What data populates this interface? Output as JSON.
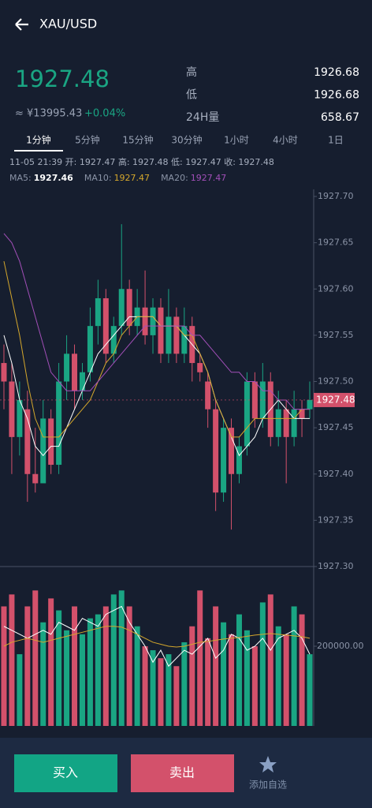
{
  "header": {
    "title": "XAU/USD"
  },
  "ticker": {
    "price": "1927.48",
    "cny": "≈ ¥13995.43",
    "change": "+0.04%",
    "stats": [
      {
        "label": "高",
        "value": "1926.68"
      },
      {
        "label": "低",
        "value": "1926.68"
      },
      {
        "label": "24H量",
        "value": "658.67"
      }
    ]
  },
  "tabs": [
    "1分钟",
    "5分钟",
    "15分钟",
    "30分钟",
    "1小时",
    "4小时",
    "1日"
  ],
  "info": "11-05 21:39 开: 1927.47 高: 1927.48 低: 1927.47 收: 1927.48",
  "chart_data": {
    "type": "candlestick",
    "up_color": "#1aa583",
    "down_color": "#d3516b",
    "ylim": [
      1927.3,
      1927.7
    ],
    "yticks": [
      {
        "value": 1927.7,
        "label": "1927.70"
      },
      {
        "value": 1927.65,
        "label": "1927.65"
      },
      {
        "value": 1927.6,
        "label": "1927.60"
      },
      {
        "value": 1927.55,
        "label": "1927.55"
      },
      {
        "value": 1927.5,
        "label": "1927.50"
      },
      {
        "value": 1927.45,
        "label": "1927.45"
      },
      {
        "value": 1927.4,
        "label": "1927.40"
      },
      {
        "value": 1927.35,
        "label": "1927.35"
      },
      {
        "value": 1927.3,
        "label": "1927.30"
      }
    ],
    "last_price": 1927.48,
    "open": [
      1927.52,
      1927.5,
      1927.44,
      1927.47,
      1927.4,
      1927.39,
      1927.46,
      1927.41,
      1927.5,
      1927.53,
      1927.49,
      1927.51,
      1927.56,
      1927.59,
      1927.53,
      1927.56,
      1927.6,
      1927.56,
      1927.58,
      1927.55,
      1927.58,
      1927.53,
      1927.57,
      1927.53,
      1927.56,
      1927.52,
      1927.5,
      1927.47,
      1927.38,
      1927.45,
      1927.4,
      1927.43,
      1927.5,
      1927.46,
      1927.5,
      1927.44,
      1927.47,
      1927.44,
      1927.47,
      1927.47
    ],
    "high": [
      1927.54,
      1927.52,
      1927.5,
      1927.49,
      1927.45,
      1927.48,
      1927.47,
      1927.52,
      1927.55,
      1927.54,
      1927.52,
      1927.58,
      1927.61,
      1927.6,
      1927.57,
      1927.67,
      1927.61,
      1927.6,
      1927.62,
      1927.59,
      1927.59,
      1927.6,
      1927.58,
      1927.58,
      1927.57,
      1927.53,
      1927.51,
      1927.48,
      1927.46,
      1927.46,
      1927.44,
      1927.51,
      1927.51,
      1927.52,
      1927.51,
      1927.49,
      1927.48,
      1927.49,
      1927.48,
      1927.5
    ],
    "low": [
      1927.47,
      1927.4,
      1927.42,
      1927.37,
      1927.38,
      1927.39,
      1927.4,
      1927.4,
      1927.48,
      1927.47,
      1927.48,
      1927.5,
      1927.54,
      1927.52,
      1927.52,
      1927.55,
      1927.55,
      1927.55,
      1927.54,
      1927.53,
      1927.52,
      1927.52,
      1927.52,
      1927.52,
      1927.5,
      1927.5,
      1927.45,
      1927.36,
      1927.37,
      1927.34,
      1927.39,
      1927.42,
      1927.45,
      1927.45,
      1927.43,
      1927.43,
      1927.39,
      1927.43,
      1927.44,
      1927.46
    ],
    "close": [
      1927.5,
      1927.44,
      1927.48,
      1927.4,
      1927.39,
      1927.46,
      1927.41,
      1927.5,
      1927.53,
      1927.49,
      1927.51,
      1927.56,
      1927.59,
      1927.53,
      1927.56,
      1927.6,
      1927.56,
      1927.58,
      1927.55,
      1927.58,
      1927.53,
      1927.57,
      1927.53,
      1927.56,
      1927.52,
      1927.51,
      1927.47,
      1927.38,
      1927.45,
      1927.4,
      1927.43,
      1927.5,
      1927.46,
      1927.5,
      1927.44,
      1927.47,
      1927.44,
      1927.47,
      1927.46,
      1927.48
    ],
    "series": [
      {
        "name": "MA5:",
        "current": 1927.46,
        "color": "#ffffff",
        "values": [
          1927.55,
          1927.52,
          1927.48,
          1927.46,
          1927.43,
          1927.42,
          1927.43,
          1927.43,
          1927.45,
          1927.47,
          1927.49,
          1927.51,
          1927.53,
          1927.54,
          1927.55,
          1927.56,
          1927.57,
          1927.57,
          1927.57,
          1927.57,
          1927.56,
          1927.56,
          1927.56,
          1927.55,
          1927.54,
          1927.53,
          1927.51,
          1927.48,
          1927.46,
          1927.44,
          1927.42,
          1927.43,
          1927.44,
          1927.46,
          1927.47,
          1927.48,
          1927.47,
          1927.46,
          1927.46,
          1927.46
        ]
      },
      {
        "name": "MA10:",
        "current": 1927.47,
        "color": "#d4a72c",
        "values": [
          1927.63,
          1927.59,
          1927.55,
          1927.5,
          1927.46,
          1927.44,
          1927.44,
          1927.44,
          1927.45,
          1927.46,
          1927.47,
          1927.48,
          1927.5,
          1927.52,
          1927.53,
          1927.55,
          1927.56,
          1927.57,
          1927.57,
          1927.57,
          1927.56,
          1927.56,
          1927.56,
          1927.55,
          1927.55,
          1927.53,
          1927.51,
          1927.48,
          1927.46,
          1927.44,
          1927.44,
          1927.45,
          1927.46,
          1927.46,
          1927.46,
          1927.46,
          1927.46,
          1927.46,
          1927.47,
          1927.47
        ]
      },
      {
        "name": "MA20:",
        "current": 1927.47,
        "color": "#a24fb8",
        "values": [
          1927.66,
          1927.65,
          1927.63,
          1927.6,
          1927.57,
          1927.54,
          1927.51,
          1927.5,
          1927.49,
          1927.49,
          1927.49,
          1927.49,
          1927.5,
          1927.51,
          1927.52,
          1927.53,
          1927.54,
          1927.55,
          1927.56,
          1927.56,
          1927.56,
          1927.56,
          1927.56,
          1927.56,
          1927.55,
          1927.55,
          1927.54,
          1927.53,
          1927.52,
          1927.51,
          1927.51,
          1927.5,
          1927.5,
          1927.49,
          1927.49,
          1927.48,
          1927.48,
          1927.47,
          1927.47,
          1927.47
        ]
      }
    ],
    "volume": [
      300000,
      330000,
      180000,
      300000,
      340000,
      260000,
      320000,
      290000,
      240000,
      300000,
      230000,
      270000,
      280000,
      300000,
      330000,
      340000,
      300000,
      250000,
      200000,
      190000,
      170000,
      180000,
      150000,
      210000,
      250000,
      340000,
      220000,
      300000,
      260000,
      230000,
      280000,
      240000,
      200000,
      310000,
      330000,
      250000,
      230000,
      300000,
      280000,
      180000
    ],
    "volume_ylim": [
      0,
      400000
    ],
    "volume_ticks": [
      {
        "value": 200000,
        "label": "200000.00"
      }
    ],
    "volume_series": [
      {
        "color": "#ffffff",
        "values": [
          250000,
          240000,
          230000,
          220000,
          230000,
          240000,
          230000,
          260000,
          250000,
          240000,
          270000,
          260000,
          250000,
          280000,
          290000,
          300000,
          260000,
          230000,
          200000,
          160000,
          190000,
          150000,
          170000,
          190000,
          180000,
          200000,
          220000,
          170000,
          190000,
          230000,
          220000,
          190000,
          200000,
          220000,
          190000,
          220000,
          230000,
          240000,
          220000,
          180000
        ]
      },
      {
        "color": "#d4a72c",
        "values": [
          200000,
          210000,
          215000,
          220000,
          215000,
          210000,
          215000,
          220000,
          225000,
          230000,
          235000,
          240000,
          245000,
          250000,
          250000,
          248000,
          240000,
          230000,
          220000,
          210000,
          205000,
          200000,
          198000,
          200000,
          205000,
          210000,
          212000,
          215000,
          218000,
          220000,
          222000,
          225000,
          228000,
          230000,
          232000,
          230000,
          228000,
          226000,
          224000,
          220000
        ]
      }
    ]
  },
  "actions": {
    "buy": "买入",
    "sell": "卖出",
    "watch": "添加自选"
  }
}
